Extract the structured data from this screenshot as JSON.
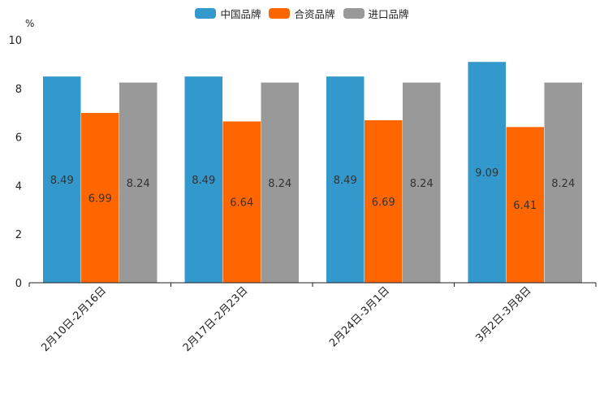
{
  "chart_data": {
    "type": "bar",
    "unit_label": "%",
    "categories": [
      "2月10日-2月16日",
      "2月17日-2月23日",
      "2月24日-3月1日",
      "3月2日-3月8日"
    ],
    "series": [
      {
        "name": "中国品牌",
        "color": "#3399CC",
        "values": [
          8.49,
          8.49,
          8.49,
          9.09
        ]
      },
      {
        "name": "合资品牌",
        "color": "#FF6600",
        "values": [
          6.99,
          6.64,
          6.69,
          6.41
        ]
      },
      {
        "name": "进口品牌",
        "color": "#999999",
        "values": [
          8.24,
          8.24,
          8.24,
          8.24
        ]
      }
    ],
    "ylim": [
      0,
      10
    ],
    "yticks": [
      0,
      2,
      4,
      6,
      8,
      10
    ],
    "legend_position": "top-center"
  }
}
